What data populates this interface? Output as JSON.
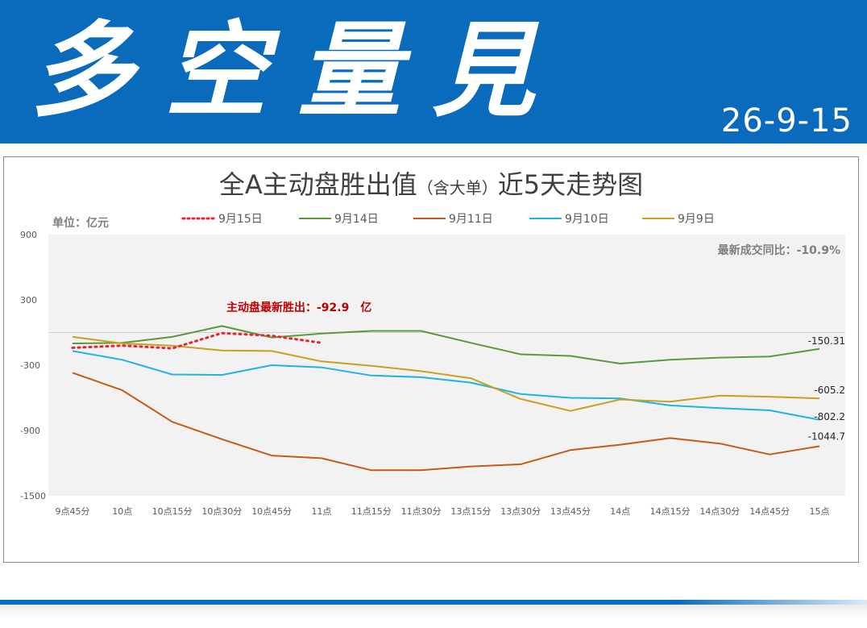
{
  "header": {
    "brand": "多空量見",
    "date": "26-9-15"
  },
  "chart_data": {
    "type": "line",
    "title": "全A主动盘胜出值（含大单）近5天走势图",
    "title_main": "全A主动盘胜出值",
    "title_paren": "（含大单）",
    "title_tail": "近5天走势图",
    "unit_label": "单位：亿元",
    "ratio_label": "最新成交同比：",
    "ratio_value": "-10.9%",
    "latest_label": "主动盘最新胜出：",
    "latest_value": "-92.9",
    "latest_unit": "亿",
    "ylim": [
      -1500,
      900
    ],
    "yticks": [
      "900",
      "300",
      "-300",
      "-900",
      "-1500"
    ],
    "ytick_values": [
      900,
      300,
      -300,
      -900,
      -1500
    ],
    "categories": [
      "9点45分",
      "10点",
      "10点15分",
      "10点30分",
      "10点45分",
      "11点",
      "11点15分",
      "11点30分",
      "13点15分",
      "13点30分",
      "13点45分",
      "14点",
      "14点15分",
      "14点30分",
      "14点45分",
      "15点"
    ],
    "grid": false,
    "legend_position": "top",
    "series": [
      {
        "name": "9月15日",
        "color": "#e8252a",
        "dash": "dotted",
        "values": [
          -140,
          -120,
          -145,
          -5,
          -30,
          -95,
          null,
          null,
          null,
          null,
          null,
          null,
          null,
          null,
          null,
          null
        ]
      },
      {
        "name": "9月14日",
        "color": "#5b9a3a",
        "dash": "solid",
        "values": [
          -100,
          -95,
          -40,
          60,
          -45,
          -10,
          15,
          15,
          -95,
          -200,
          -215,
          -285,
          -250,
          -230,
          -220,
          -150.31
        ]
      },
      {
        "name": "9月11日",
        "color": "#c55a1a",
        "dash": "solid",
        "values": [
          -370,
          -530,
          -820,
          -980,
          -1130,
          -1155,
          -1265,
          -1265,
          -1230,
          -1210,
          -1080,
          -1030,
          -970,
          -1020,
          -1120,
          -1044.7
        ]
      },
      {
        "name": "9月10日",
        "color": "#1fb3e6",
        "dash": "solid",
        "values": [
          -170,
          -250,
          -385,
          -390,
          -300,
          -320,
          -395,
          -410,
          -460,
          -565,
          -600,
          -605,
          -670,
          -695,
          -715,
          -802.2
        ]
      },
      {
        "name": "9月9日",
        "color": "#c9a021",
        "dash": "solid",
        "values": [
          -40,
          -100,
          -120,
          -165,
          -170,
          -265,
          -305,
          -355,
          -420,
          -610,
          -720,
          -615,
          -635,
          -580,
          -590,
          -605.2
        ]
      }
    ],
    "end_labels": [
      "-150.31",
      "-605.2",
      "-802.2",
      "-1044.7"
    ]
  }
}
